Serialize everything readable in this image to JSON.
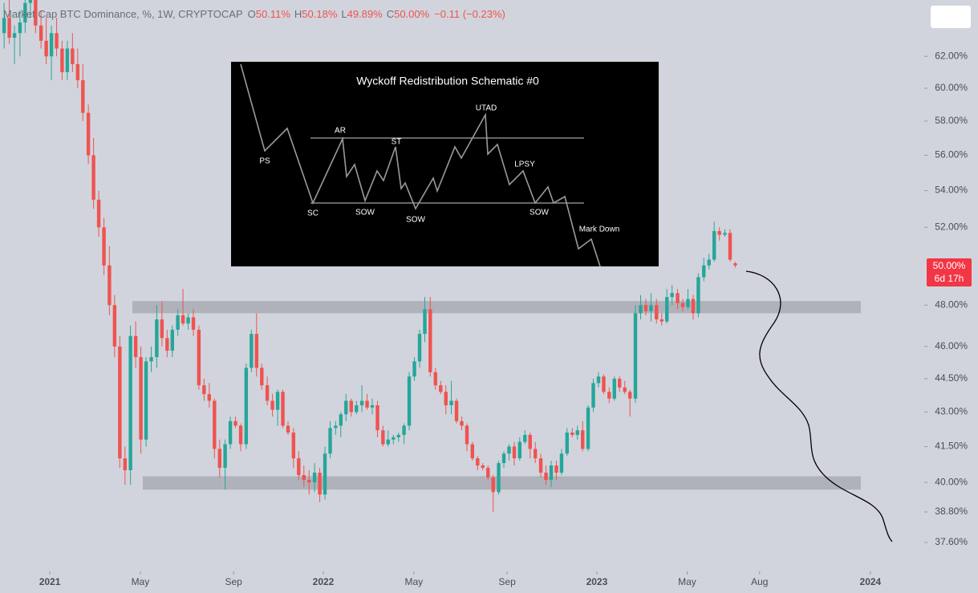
{
  "chart_data": {
    "type": "candlestick",
    "title": "Market Cap BTC Dominance, %, 1W, CRYPTOCAP",
    "last_keys": [
      "O",
      "H",
      "L",
      "C"
    ],
    "last_labels": [
      "50.11%",
      "50.18%",
      "49.89%",
      "50.00%"
    ],
    "change": "−0.11 (−0.23%)",
    "price_label": "50.00%",
    "countdown": "6d 17h",
    "log_scale": true,
    "up_color": "#26a69a",
    "down_color": "#ef5350",
    "zone_color": "#a9acb4",
    "xlim": [
      2020.818,
      2024.191
    ],
    "ylim": [
      36.5,
      65.7
    ],
    "xticks": [
      {
        "value": 2021,
        "label": "2021"
      },
      {
        "value": 2021.331,
        "label": "May"
      },
      {
        "value": 2021.672,
        "label": "Sep"
      },
      {
        "value": 2022,
        "label": "2022"
      },
      {
        "value": 2022.331,
        "label": "May"
      },
      {
        "value": 2022.672,
        "label": "Sep"
      },
      {
        "value": 2023,
        "label": "2023"
      },
      {
        "value": 2023.33,
        "label": "May"
      },
      {
        "value": 2023.595,
        "label": "Aug"
      },
      {
        "value": 2024,
        "label": "2024"
      }
    ],
    "yticks": [
      {
        "value": 37.6,
        "label": "37.60%"
      },
      {
        "value": 38.8,
        "label": "38.80%"
      },
      {
        "value": 40,
        "label": "40.00%"
      },
      {
        "value": 41.5,
        "label": "41.50%"
      },
      {
        "value": 43,
        "label": "43.00%"
      },
      {
        "value": 44.5,
        "label": "44.50%"
      },
      {
        "value": 46,
        "label": "46.00%"
      },
      {
        "value": 48,
        "label": "48.00%"
      },
      {
        "value": 52,
        "label": "52.00%"
      },
      {
        "value": 54,
        "label": "54.00%"
      },
      {
        "value": 56,
        "label": "56.00%"
      },
      {
        "value": 58,
        "label": "58.00%"
      },
      {
        "value": 60,
        "label": "60.00%"
      },
      {
        "value": 62,
        "label": "62.00%"
      }
    ],
    "zones": [
      {
        "xlim": [
          2021.302,
          2023.965
        ],
        "ylim": [
          47.6,
          48.2
        ]
      },
      {
        "xlim": [
          2021.34,
          2023.965
        ],
        "ylim": [
          39.7,
          40.25
        ]
      }
    ],
    "x": [
      2020.833,
      2020.852,
      2020.871,
      2020.891,
      2020.91,
      2020.929,
      2020.948,
      2020.968,
      2020.987,
      2021.006,
      2021.025,
      2021.045,
      2021.064,
      2021.083,
      2021.102,
      2021.121,
      2021.141,
      2021.16,
      2021.179,
      2021.198,
      2021.218,
      2021.237,
      2021.256,
      2021.275,
      2021.295,
      2021.314,
      2021.333,
      2021.352,
      2021.371,
      2021.391,
      2021.41,
      2021.429,
      2021.448,
      2021.468,
      2021.487,
      2021.506,
      2021.525,
      2021.545,
      2021.564,
      2021.583,
      2021.602,
      2021.621,
      2021.641,
      2021.66,
      2021.679,
      2021.698,
      2021.718,
      2021.737,
      2021.756,
      2021.775,
      2021.795,
      2021.814,
      2021.833,
      2021.852,
      2021.871,
      2021.891,
      2021.91,
      2021.929,
      2021.948,
      2021.968,
      2021.987,
      2022.006,
      2022.025,
      2022.045,
      2022.064,
      2022.083,
      2022.102,
      2022.121,
      2022.141,
      2022.16,
      2022.179,
      2022.198,
      2022.218,
      2022.237,
      2022.256,
      2022.275,
      2022.295,
      2022.314,
      2022.333,
      2022.352,
      2022.371,
      2022.391,
      2022.41,
      2022.429,
      2022.448,
      2022.468,
      2022.487,
      2022.506,
      2022.525,
      2022.545,
      2022.564,
      2022.583,
      2022.602,
      2022.621,
      2022.641,
      2022.66,
      2022.679,
      2022.698,
      2022.718,
      2022.737,
      2022.756,
      2022.775,
      2022.795,
      2022.814,
      2022.833,
      2022.852,
      2022.871,
      2022.891,
      2022.91,
      2022.929,
      2022.948,
      2022.968,
      2022.987,
      2023.006,
      2023.025,
      2023.045,
      2023.064,
      2023.083,
      2023.102,
      2023.121,
      2023.141,
      2023.16,
      2023.179,
      2023.198,
      2023.218,
      2023.237,
      2023.256,
      2023.275,
      2023.295,
      2023.314,
      2023.333,
      2023.352,
      2023.371,
      2023.391,
      2023.41,
      2023.429,
      2023.448,
      2023.468,
      2023.487,
      2023.506,
      2023.525
    ],
    "ohlc": [
      [
        63.5,
        65.5,
        62.5,
        64.5
      ],
      [
        64.5,
        66,
        62.8,
        63.2
      ],
      [
        63.2,
        64,
        61.5,
        63.5
      ],
      [
        63.5,
        65,
        62,
        64.2
      ],
      [
        64.2,
        66,
        63.5,
        65.5
      ],
      [
        65.5,
        66.2,
        64.5,
        65.8
      ],
      [
        65.8,
        66.2,
        63.5,
        64
      ],
      [
        64,
        65,
        62.5,
        63
      ],
      [
        63,
        64.5,
        61.5,
        62
      ],
      [
        62,
        64,
        60.5,
        63.5
      ],
      [
        63.5,
        64.5,
        62,
        62.5
      ],
      [
        62.5,
        63,
        60.5,
        61
      ],
      [
        61,
        63,
        60.5,
        62.5
      ],
      [
        62.5,
        63.5,
        61,
        61.5
      ],
      [
        61.5,
        62.5,
        60,
        60.5
      ],
      [
        60.5,
        61.5,
        58,
        58.5
      ],
      [
        58.5,
        59,
        55.5,
        56
      ],
      [
        56,
        57,
        53,
        53.5
      ],
      [
        53.5,
        54,
        51.5,
        52
      ],
      [
        52,
        52.5,
        49.5,
        50
      ],
      [
        50,
        51,
        47.5,
        48
      ],
      [
        48,
        48.5,
        45.5,
        46
      ],
      [
        46,
        46.5,
        40.6,
        41
      ],
      [
        41,
        41.5,
        39.9,
        40.5
      ],
      [
        40.5,
        47,
        39.9,
        46.5
      ],
      [
        46.5,
        47.2,
        45,
        45.5
      ],
      [
        45.5,
        46,
        41.2,
        41.8
      ],
      [
        41.8,
        45.5,
        41.5,
        45.3
      ],
      [
        45.3,
        46,
        44.8,
        45.5
      ],
      [
        45.5,
        48,
        45,
        47.3
      ],
      [
        47.3,
        48.2,
        46,
        46.4
      ],
      [
        46.4,
        46.8,
        45.5,
        45.8
      ],
      [
        45.8,
        47,
        45.5,
        46.8
      ],
      [
        46.8,
        47.8,
        46.5,
        47.5
      ],
      [
        47.5,
        48.8,
        47,
        47.1
      ],
      [
        47.1,
        47.6,
        46.8,
        47.4
      ],
      [
        47.4,
        47.8,
        46.5,
        46.8
      ],
      [
        46.8,
        47,
        44,
        44.2
      ],
      [
        44.2,
        44.5,
        43.5,
        43.8
      ],
      [
        43.8,
        44.3,
        43.2,
        43.5
      ],
      [
        43.5,
        43.6,
        41,
        41.4
      ],
      [
        41.4,
        41.8,
        40.2,
        40.6
      ],
      [
        40.6,
        41.8,
        39.7,
        41.6
      ],
      [
        41.6,
        42.8,
        41.4,
        42.6
      ],
      [
        42.6,
        42.8,
        42.3,
        42.4
      ],
      [
        42.4,
        42.5,
        41.3,
        41.6
      ],
      [
        41.6,
        45.2,
        41.4,
        45
      ],
      [
        45,
        46.8,
        44.8,
        46.6
      ],
      [
        46.6,
        47.6,
        44.6,
        45
      ],
      [
        45,
        45.2,
        44,
        44.2
      ],
      [
        44.2,
        44.6,
        43.3,
        43.5
      ],
      [
        43.5,
        43.8,
        42.8,
        43.1
      ],
      [
        43.1,
        44,
        42.4,
        43.9
      ],
      [
        43.9,
        44,
        42.3,
        42.4
      ],
      [
        42.4,
        42.6,
        42,
        42.1
      ],
      [
        42.1,
        42.3,
        40.6,
        41
      ],
      [
        41,
        41.3,
        40.1,
        40.3
      ],
      [
        40.3,
        40.7,
        39.8,
        40.1
      ],
      [
        40.1,
        40.5,
        39.5,
        40
      ],
      [
        40,
        40.8,
        39.6,
        40.4
      ],
      [
        40.4,
        40.6,
        39.2,
        39.5
      ],
      [
        39.5,
        41.5,
        39.3,
        41.2
      ],
      [
        41.2,
        42.6,
        41,
        42.3
      ],
      [
        42.3,
        42.6,
        42,
        42.4
      ],
      [
        42.4,
        43,
        41.9,
        42.9
      ],
      [
        42.9,
        43.8,
        42.6,
        43.5
      ],
      [
        43.5,
        43.6,
        42.8,
        43
      ],
      [
        43,
        43.5,
        42.9,
        43.3
      ],
      [
        43.3,
        44.2,
        43,
        43.5
      ],
      [
        43.5,
        43.8,
        43.1,
        43.2
      ],
      [
        43.2,
        43.6,
        42.9,
        43.3
      ],
      [
        43.3,
        43.5,
        41.9,
        42.2
      ],
      [
        42.2,
        42.4,
        41.5,
        41.6
      ],
      [
        41.6,
        42.2,
        41.5,
        41.8
      ],
      [
        41.8,
        42,
        41.6,
        41.9
      ],
      [
        41.9,
        42.1,
        41.7,
        42
      ],
      [
        42,
        42.5,
        41.6,
        42.4
      ],
      [
        42.4,
        44.8,
        42.2,
        44.6
      ],
      [
        44.6,
        45.5,
        44.4,
        45.3
      ],
      [
        45.3,
        46.8,
        45,
        46.6
      ],
      [
        46.6,
        48.4,
        46.2,
        47.8
      ],
      [
        47.8,
        48.4,
        44.6,
        44.8
      ],
      [
        44.8,
        45,
        44,
        44.2
      ],
      [
        44.2,
        44.4,
        43.8,
        43.9
      ],
      [
        43.9,
        44.2,
        42.9,
        43.3
      ],
      [
        43.3,
        44.4,
        42.9,
        43.5
      ],
      [
        43.5,
        43.6,
        42.5,
        42.6
      ],
      [
        42.6,
        42.8,
        42.2,
        42.4
      ],
      [
        42.4,
        42.5,
        41.3,
        41.6
      ],
      [
        41.6,
        41.7,
        40.9,
        41
      ],
      [
        41,
        41.1,
        40.5,
        40.7
      ],
      [
        40.7,
        40.8,
        40.5,
        40.6
      ],
      [
        40.6,
        40.7,
        40.1,
        40.2
      ],
      [
        40.2,
        40.3,
        38.8,
        39.6
      ],
      [
        39.6,
        40.9,
        39.5,
        40.8
      ],
      [
        40.8,
        41.3,
        40.6,
        41.2
      ],
      [
        41.2,
        41.6,
        40.9,
        41.5
      ],
      [
        41.5,
        41.7,
        40.7,
        41
      ],
      [
        41,
        41.9,
        40.9,
        41.7
      ],
      [
        41.7,
        42.2,
        41.6,
        42
      ],
      [
        42,
        42.1,
        41,
        41.4
      ],
      [
        41.4,
        41.7,
        40.8,
        41
      ],
      [
        41,
        41.2,
        40.2,
        40.4
      ],
      [
        40.4,
        40.7,
        39.9,
        40.1
      ],
      [
        40.1,
        40.9,
        39.8,
        40.7
      ],
      [
        40.7,
        40.9,
        40.1,
        40.4
      ],
      [
        40.4,
        41.4,
        40.3,
        41.2
      ],
      [
        41.2,
        42.3,
        41.1,
        42.1
      ],
      [
        42.1,
        42.3,
        41.9,
        42
      ],
      [
        42,
        42.4,
        41.8,
        42.2
      ],
      [
        42.2,
        42.6,
        41.3,
        41.4
      ],
      [
        41.4,
        43.3,
        41.3,
        43.2
      ],
      [
        43.2,
        44.5,
        43,
        44.3
      ],
      [
        44.3,
        44.8,
        44.1,
        44.6
      ],
      [
        44.6,
        44.7,
        43.8,
        43.9
      ],
      [
        43.9,
        44.1,
        43.4,
        43.6
      ],
      [
        43.6,
        44.6,
        43.5,
        44.5
      ],
      [
        44.5,
        44.6,
        43.9,
        44.1
      ],
      [
        44.1,
        44.4,
        43.8,
        43.9
      ],
      [
        43.9,
        44,
        42.8,
        43.6
      ],
      [
        43.6,
        48,
        43.4,
        47.6
      ],
      [
        47.6,
        48.5,
        47.3,
        48
      ],
      [
        48,
        48.3,
        47.5,
        47.7
      ],
      [
        47.7,
        48.6,
        47.2,
        48
      ],
      [
        48,
        48.3,
        47.1,
        47.3
      ],
      [
        47.3,
        47.6,
        47,
        47.2
      ],
      [
        47.2,
        48.8,
        47.1,
        48.4
      ],
      [
        48.4,
        49,
        48,
        48.6
      ],
      [
        48.6,
        48.8,
        47.8,
        48.1
      ],
      [
        48.1,
        48.3,
        47.7,
        47.9
      ],
      [
        47.9,
        48.8,
        47.8,
        48.3
      ],
      [
        48.3,
        48.5,
        47.3,
        47.6
      ],
      [
        47.6,
        49.6,
        47.4,
        49.4
      ],
      [
        49.4,
        50.4,
        49.2,
        50
      ],
      [
        50,
        50.6,
        49.8,
        50.3
      ],
      [
        50.3,
        52.3,
        50.2,
        51.8
      ],
      [
        51.8,
        52,
        51.3,
        51.6
      ],
      [
        51.6,
        51.9,
        51.5,
        51.7
      ],
      [
        51.7,
        51.9,
        50.2,
        50.3
      ],
      [
        50.11,
        50.18,
        49.89,
        50
      ]
    ]
  },
  "inset": {
    "title": "Wyckoff Redistribution Schematic #0",
    "labels": [
      "PS",
      "AR",
      "ST",
      "UTAD",
      "LPSY",
      "SC",
      "SOW",
      "SOW",
      "SOW",
      "Mark Down"
    ]
  }
}
